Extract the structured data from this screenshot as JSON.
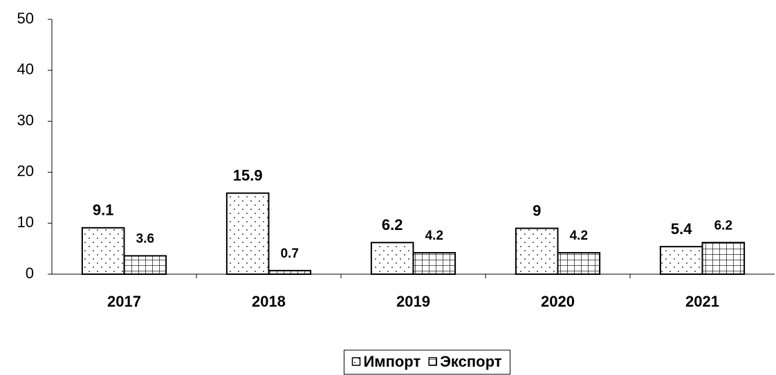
{
  "chart_data": {
    "type": "bar",
    "categories": [
      "2017",
      "2018",
      "2019",
      "2020",
      "2021"
    ],
    "series": [
      {
        "name": "Импорт",
        "color": "#ffffff",
        "pattern": "dots",
        "values": [
          9.1,
          15.9,
          6.2,
          9,
          5.4
        ]
      },
      {
        "name": "Экспорт",
        "color": "#ffffff",
        "pattern": "grid",
        "values": [
          3.6,
          0.7,
          4.2,
          4.2,
          6.2
        ]
      }
    ],
    "ylim": [
      0,
      50
    ],
    "yticks": [
      0,
      10,
      20,
      30,
      40,
      50
    ],
    "grid": false,
    "legend": "bottom"
  }
}
